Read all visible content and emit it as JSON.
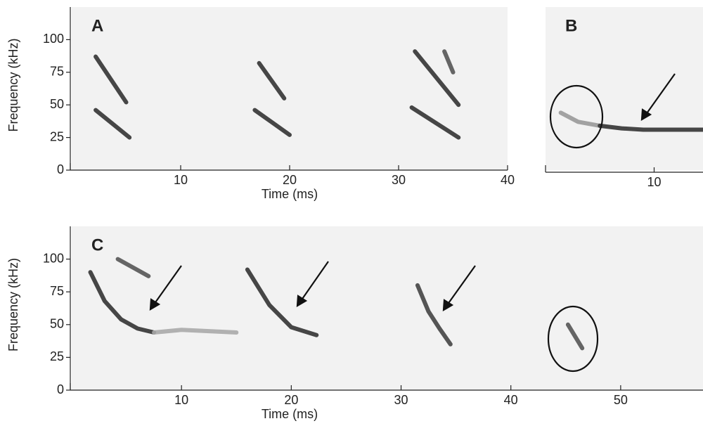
{
  "chart_data": [
    {
      "type": "line",
      "label": "A",
      "xlabel": "Time (ms)",
      "ylabel": "Frequency (kHz)",
      "xlim": [
        0,
        40
      ],
      "ylim": [
        0,
        125
      ],
      "xticks": [
        10,
        20,
        30,
        40
      ],
      "yticks": [
        0,
        25,
        50,
        75,
        100
      ],
      "series": [
        {
          "color": "#333333",
          "x": [
            2.2,
            5
          ],
          "values": [
            87,
            52
          ]
        },
        {
          "color": "#333333",
          "x": [
            2.2,
            5.3
          ],
          "values": [
            46,
            25
          ]
        },
        {
          "color": "#333333",
          "x": [
            17.2,
            19.5
          ],
          "values": [
            82,
            55
          ]
        },
        {
          "color": "#333333",
          "x": [
            16.8,
            20
          ],
          "values": [
            46,
            27
          ]
        },
        {
          "color": "#333333",
          "x": [
            31.5,
            35.5
          ],
          "values": [
            91,
            50
          ]
        },
        {
          "color": "#333333",
          "x": [
            31.2,
            35.5
          ],
          "values": [
            48,
            25
          ]
        },
        {
          "color": "#555555",
          "x": [
            34.2,
            35
          ],
          "values": [
            91,
            75
          ]
        }
      ]
    },
    {
      "type": "line",
      "label": "B",
      "xlim": [
        0,
        14.5
      ],
      "ylim": [
        0,
        125
      ],
      "xticks": [
        10
      ],
      "series": [
        {
          "color": "#999999",
          "x": [
            1.4,
            3,
            5
          ],
          "values": [
            44,
            37,
            34
          ]
        },
        {
          "color": "#333333",
          "x": [
            5,
            7,
            9,
            14.5
          ],
          "values": [
            34,
            32,
            31,
            31
          ]
        }
      ]
    },
    {
      "type": "line",
      "label": "C",
      "xlabel": "Time (ms)",
      "ylabel": "Frequency (kHz)",
      "xlim": [
        0,
        57.5
      ],
      "ylim": [
        0,
        125
      ],
      "xticks": [
        10,
        20,
        30,
        40,
        50
      ],
      "yticks": [
        0,
        25,
        50,
        75,
        100
      ],
      "series": [
        {
          "color": "#333333",
          "x": [
            1.7,
            3,
            4.5,
            6,
            7.5
          ],
          "values": [
            90,
            68,
            54,
            47,
            44
          ]
        },
        {
          "color": "#aaaaaa",
          "x": [
            7.5,
            10,
            12.5,
            15
          ],
          "values": [
            44,
            46,
            45,
            44
          ]
        },
        {
          "color": "#555555",
          "x": [
            4.2,
            7
          ],
          "values": [
            100,
            87
          ]
        },
        {
          "color": "#333333",
          "x": [
            16,
            18,
            20,
            22.3
          ],
          "values": [
            92,
            65,
            48,
            42
          ]
        },
        {
          "color": "#444444",
          "x": [
            31.5,
            32.5,
            33.5,
            34.5
          ],
          "values": [
            80,
            60,
            47,
            35
          ]
        },
        {
          "color": "#555555",
          "x": [
            45.2,
            46.5
          ],
          "values": [
            50,
            32
          ]
        }
      ]
    }
  ]
}
